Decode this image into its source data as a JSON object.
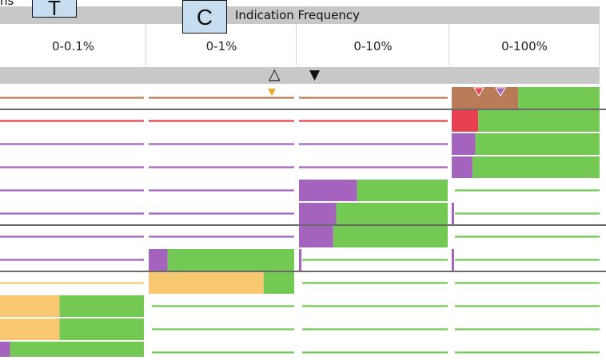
{
  "header": {
    "title": "Indication Frequency",
    "left_label": "ns",
    "box_t": "T",
    "box_c": "C"
  },
  "columns": [
    {
      "label": "0-0.1%"
    },
    {
      "label": "0-1%"
    },
    {
      "label": "0-10%"
    },
    {
      "label": "0-100%"
    }
  ],
  "markers": {
    "open_triangle": "△",
    "filled_triangle": "▼"
  },
  "colors": {
    "brown": "#b97a57",
    "red": "#e84050",
    "purple": "#a464be",
    "orange": "#f8c870",
    "green": "#74c854",
    "band": "#c8c8c8"
  },
  "rows": [
    {
      "color": "brown",
      "active": 3,
      "frac": 0.45,
      "end_sep": true
    },
    {
      "color": "red",
      "active": 3,
      "frac": 0.18,
      "end_sep": false
    },
    {
      "color": "purple",
      "active": 3,
      "frac": 0.16,
      "end_sep": false
    },
    {
      "color": "purple",
      "active": 3,
      "frac": 0.14,
      "end_sep": false
    },
    {
      "color": "purple",
      "active": 2,
      "frac": 0.39,
      "end_sep": false
    },
    {
      "color": "purple",
      "active": 2,
      "frac": 0.25,
      "end_sep": true
    },
    {
      "color": "purple",
      "active": 2,
      "frac": 0.23,
      "end_sep": false
    },
    {
      "color": "purple",
      "active": 1,
      "frac": 0.13,
      "end_sep": true
    },
    {
      "color": "orange",
      "active": 1,
      "frac": 0.79,
      "end_sep": false
    },
    {
      "color": "orange",
      "active": 0,
      "frac": 0.42,
      "end_sep": false
    },
    {
      "color": "orange",
      "active": 0,
      "frac": 0.42,
      "end_sep": false
    },
    {
      "color": "purple",
      "active": 0,
      "frac": 0.08,
      "end_sep": false
    }
  ]
}
